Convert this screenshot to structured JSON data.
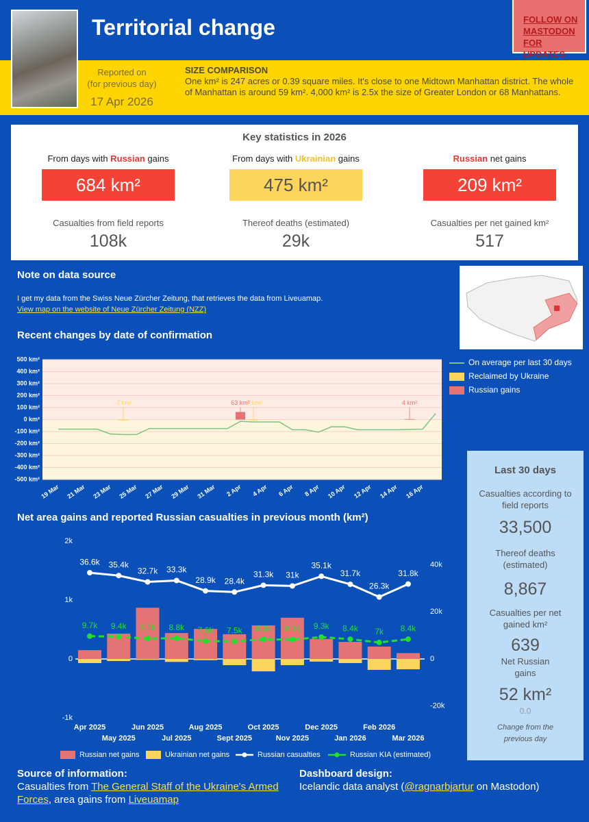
{
  "header": {
    "title": "Territorial change",
    "follow": "FOLLOW ON MASTODON FOR UPDATES",
    "reported_label": "Reported on",
    "reported_sub": "(for previous day)",
    "date": "17 Apr 2026",
    "size_title": "SIZE COMPARISON",
    "size_text": "One km² is 247 acres or 0.39 square miles. It's close to one Midtown Manhattan district. The whole of Manhattan is around 59 km². 4,000 km² is 2.5x the size of Greater London or 68 Manhattans."
  },
  "stats": {
    "title": "Key statistics in 2026",
    "main": [
      {
        "pre": "From days with ",
        "highlight": "Russian",
        "post": " gains",
        "value": "684 km²"
      },
      {
        "pre": "From days with ",
        "highlight": "Ukrainian",
        "post": " gains",
        "value": "475 km²"
      },
      {
        "highlight": "Russian",
        "post": " net gains",
        "value": "209 km²"
      }
    ],
    "secondary": [
      {
        "label": "Casualties from field reports",
        "value": "108k"
      },
      {
        "label": "Thereof deaths (estimated)",
        "value": "29k"
      },
      {
        "label": "Casualties per net gained km²",
        "value": "517"
      }
    ]
  },
  "note": {
    "title": "Note on data source",
    "text": "I get my data from the Swiss Neue Zürcher Zeitung, that  retrieves the data from Liveuamap.",
    "link": "View map on the website of Neue Zürcher Zeitung (NZZ)"
  },
  "chart_data": [
    {
      "type": "combo",
      "title": "Recent changes by date of confirmation",
      "categories": [
        "19 Mar",
        null,
        "21 Mar",
        null,
        "23 Mar",
        null,
        "25 Mar",
        null,
        "27 Mar",
        null,
        "29 Mar",
        null,
        "31 Mar",
        null,
        "2 Apr",
        null,
        "4 Apr",
        null,
        "6 Apr",
        null,
        "8 Apr",
        null,
        "10 Apr",
        null,
        "12 Apr",
        null,
        "14 Apr",
        null,
        "16 Apr",
        null
      ],
      "ylim": [
        -500,
        500
      ],
      "yticks": [
        {
          "value": -500,
          "label": "-500 km²"
        },
        {
          "value": -400,
          "label": "-400 km²"
        },
        {
          "value": -300,
          "label": "-300 km²"
        },
        {
          "value": -200,
          "label": "-200 km²"
        },
        {
          "value": -100,
          "label": "-100 km²"
        },
        {
          "value": 0,
          "label": "0 km²"
        },
        {
          "value": 100,
          "label": "100 km²"
        },
        {
          "value": 200,
          "label": "200 km²"
        },
        {
          "value": 300,
          "label": "300 km²"
        },
        {
          "value": 400,
          "label": "400 km²"
        },
        {
          "value": 500,
          "label": "500 km²"
        }
      ],
      "grid": true,
      "series": [
        {
          "name": "On average per last 30 days",
          "type": "line",
          "color": "#7dc383",
          "values": [
            -80,
            -80,
            -80,
            -80,
            -120,
            -125,
            -125,
            -75,
            -75,
            -75,
            -75,
            -75,
            -75,
            -75,
            -15,
            -20,
            -20,
            -20,
            -85,
            -85,
            -105,
            -60,
            -60,
            -85,
            -85,
            -85,
            -85,
            -82,
            -80,
            50
          ]
        },
        {
          "name": "Reclaimed by Ukraine",
          "type": "bar",
          "color": "#fdd55c",
          "values": [
            null,
            null,
            null,
            null,
            null,
            -7,
            null,
            null,
            null,
            null,
            null,
            null,
            null,
            null,
            null,
            -7,
            null,
            null,
            null,
            null,
            null,
            null,
            null,
            null,
            null,
            null,
            null,
            null,
            null,
            null
          ],
          "value_labels": [
            null,
            null,
            null,
            null,
            null,
            "-7 km²",
            null,
            null,
            null,
            null,
            null,
            null,
            null,
            null,
            null,
            "-7 km²",
            null,
            null,
            null,
            null,
            null,
            null,
            null,
            null,
            null,
            null,
            null,
            null,
            null,
            null
          ]
        },
        {
          "name": "Russian gains",
          "type": "bar",
          "color": "#e57373",
          "values": [
            null,
            null,
            null,
            null,
            null,
            null,
            null,
            null,
            null,
            null,
            null,
            null,
            null,
            null,
            63,
            null,
            null,
            null,
            null,
            null,
            null,
            null,
            null,
            null,
            null,
            null,
            null,
            4,
            null,
            null
          ],
          "value_labels": [
            null,
            null,
            null,
            null,
            null,
            null,
            null,
            null,
            null,
            null,
            null,
            null,
            null,
            null,
            "63 km²",
            null,
            null,
            null,
            null,
            null,
            null,
            null,
            null,
            null,
            null,
            null,
            null,
            "4 km²",
            null,
            null
          ]
        }
      ]
    },
    {
      "type": "combo",
      "title": "Net area gains and reported Russian casualties in previous month (km²)",
      "categories": [
        "Apr 2025",
        "May 2025",
        "Jun 2025",
        "Jul 2025",
        "Aug 2025",
        "Sept 2025",
        "Oct 2025",
        "Nov 2025",
        "Dec 2025",
        "Jan 2026",
        "Feb 2026",
        "Mar 2026"
      ],
      "ylim": [
        -1000,
        2000
      ],
      "yticks": [
        {
          "value": -1000,
          "label": "-1k"
        },
        0,
        {
          "value": 1000,
          "label": "1k"
        },
        {
          "value": 2000,
          "label": "2k"
        }
      ],
      "y2lim": [
        -25000,
        50000
      ],
      "y2ticks": [
        {
          "value": -20000,
          "label": "-20k"
        },
        0,
        {
          "value": 20000,
          "label": "20k"
        },
        {
          "value": 40000,
          "label": "40k"
        }
      ],
      "grid": false,
      "series": [
        {
          "name": "Russian net gains",
          "type": "bar",
          "color": "#e57373",
          "values": [
            150,
            430,
            870,
            440,
            510,
            420,
            570,
            700,
            340,
            290,
            210,
            100
          ]
        },
        {
          "name": "Ukrainian net gains",
          "type": "bar",
          "color": "#fdd55c",
          "values": [
            -70,
            -35,
            -15,
            -50,
            -20,
            -105,
            -210,
            -105,
            -45,
            -70,
            -185,
            -175
          ]
        },
        {
          "name": "Russian casualties",
          "type": "line",
          "axis": "y2",
          "color": "#ffffff",
          "marker": true,
          "values": [
            36600,
            35400,
            32700,
            33300,
            28900,
            28400,
            31300,
            31000,
            35100,
            31700,
            26300,
            31800
          ],
          "value_labels": [
            "36.6k",
            "35.4k",
            "32.7k",
            "33.3k",
            "28.9k",
            "28.4k",
            "31.3k",
            "31k",
            "35.1k",
            "31.7k",
            "26.3k",
            "31.8k"
          ]
        },
        {
          "name": "Russian KIA (estimated)",
          "type": "line",
          "axis": "y2",
          "color": "#22e02a",
          "marker": true,
          "dashed": true,
          "values": [
            9700,
            9400,
            8700,
            8800,
            7600,
            7500,
            8300,
            8200,
            9300,
            8400,
            7000,
            8400
          ],
          "value_labels": [
            "9.7k",
            "9.4k",
            "8.7k",
            "8.8k",
            "7.6k",
            "7.5k",
            "8.3k",
            "8.2k",
            "9.3k",
            "8.4k",
            "7k",
            "8.4k"
          ]
        }
      ]
    }
  ],
  "last30": {
    "title": "Last 30 days",
    "casualties_label": "Casualties according to field reports",
    "casualties": "33,500",
    "deaths_label": "Thereof deaths (estimated)",
    "deaths": "8,867",
    "per_km_label": "Casualties per net gained km²",
    "per_km": "639",
    "net_label": "Net Russian gains",
    "net": "52 km²",
    "change": "0.0",
    "change_label": "Change from the previous day"
  },
  "footer": {
    "source_title": "Source of information:",
    "source_pre": "Casualties from ",
    "source_link1": "The General Staff of the Ukraine's Armed Forces",
    "source_mid": ", area gains from ",
    "source_link2": "Liveuamap",
    "design_title": "Dashboard design:",
    "design_pre": "Icelandic data analyst (",
    "design_link": "@ragnarbjartur",
    "design_post": " on Mastodon)"
  }
}
